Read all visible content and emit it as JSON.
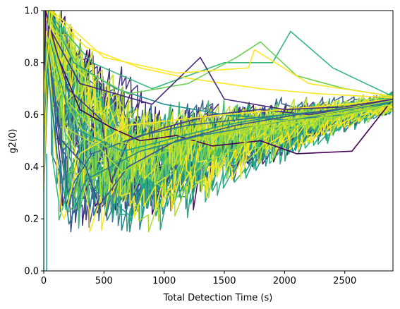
{
  "chart_data": {
    "type": "line",
    "title": "",
    "xlabel": "Total Detection Time (s)",
    "ylabel": "g2(0)",
    "xlim": [
      0,
      2900
    ],
    "ylim": [
      0.0,
      1.0
    ],
    "x_ticks": [
      0,
      500,
      1000,
      1500,
      2000,
      2500
    ],
    "y_ticks": [
      0.0,
      0.2,
      0.4,
      0.6,
      0.8,
      1.0
    ],
    "x_tick_labels": [
      "0",
      "500",
      "1000",
      "1500",
      "2000",
      "2500"
    ],
    "y_tick_labels": [
      "0.0",
      "0.2",
      "0.4",
      "0.6",
      "0.8",
      "1.0"
    ],
    "grid": false,
    "legend": "none",
    "colormap": "viridis",
    "series_count": 60,
    "x_end": 2900,
    "end_value_range": [
      0.62,
      0.68
    ],
    "series": [
      {
        "color": "#440154",
        "values": [
          [
            0,
            0.55
          ],
          [
            15,
            1.0
          ],
          [
            120,
            0.82
          ],
          [
            300,
            0.62
          ],
          [
            560,
            0.55
          ],
          [
            800,
            0.5
          ],
          [
            1100,
            0.52
          ],
          [
            1400,
            0.48
          ],
          [
            1800,
            0.5
          ],
          [
            2100,
            0.45
          ],
          [
            2560,
            0.46
          ],
          [
            2900,
            0.66
          ]
        ]
      },
      {
        "color": "#443a83",
        "values": [
          [
            0,
            0.6
          ],
          [
            30,
            0.96
          ],
          [
            200,
            0.7
          ],
          [
            480,
            0.58
          ],
          [
            560,
            0.34
          ],
          [
            700,
            0.5
          ],
          [
            1000,
            0.55
          ],
          [
            1400,
            0.6
          ],
          [
            1800,
            0.62
          ],
          [
            2200,
            0.6
          ],
          [
            2900,
            0.65
          ]
        ]
      },
      {
        "color": "#31688e",
        "values": [
          [
            0,
            0.5
          ],
          [
            20,
            0.9
          ],
          [
            100,
            0.6
          ],
          [
            180,
            0.4
          ],
          [
            200,
            0.3
          ],
          [
            400,
            0.45
          ],
          [
            800,
            0.52
          ],
          [
            1200,
            0.56
          ],
          [
            1600,
            0.58
          ],
          [
            2000,
            0.6
          ],
          [
            2500,
            0.62
          ],
          [
            2900,
            0.66
          ]
        ]
      },
      {
        "color": "#21918c",
        "values": [
          [
            0,
            0.65
          ],
          [
            40,
            1.0
          ],
          [
            250,
            0.8
          ],
          [
            600,
            0.7
          ],
          [
            1000,
            0.64
          ],
          [
            1500,
            0.6
          ],
          [
            2000,
            0.58
          ],
          [
            2500,
            0.6
          ],
          [
            2900,
            0.65
          ]
        ]
      },
      {
        "color": "#35b779",
        "values": [
          [
            0,
            0.7
          ],
          [
            60,
            0.98
          ],
          [
            400,
            0.8
          ],
          [
            900,
            0.7
          ],
          [
            1500,
            0.8
          ],
          [
            1900,
            0.8
          ],
          [
            2050,
            0.92
          ],
          [
            2400,
            0.78
          ],
          [
            2900,
            0.67
          ]
        ]
      },
      {
        "color": "#90d743",
        "values": [
          [
            0,
            0.62
          ],
          [
            20,
            0.8
          ],
          [
            300,
            0.55
          ],
          [
            900,
            0.35
          ],
          [
            1100,
            0.28
          ],
          [
            1300,
            0.4
          ],
          [
            1700,
            0.5
          ],
          [
            2100,
            0.55
          ],
          [
            2500,
            0.6
          ],
          [
            2900,
            0.64
          ]
        ]
      },
      {
        "color": "#fde725",
        "values": [
          [
            0,
            0.5
          ],
          [
            25,
            0.92
          ],
          [
            90,
            0.5
          ],
          [
            150,
            0.22
          ],
          [
            170,
            0.2
          ],
          [
            300,
            0.45
          ],
          [
            700,
            0.56
          ],
          [
            1100,
            0.58
          ],
          [
            1500,
            0.6
          ],
          [
            2000,
            0.62
          ],
          [
            2500,
            0.64
          ],
          [
            2900,
            0.66
          ]
        ]
      },
      {
        "color": "#fde725",
        "values": [
          [
            0,
            0.72
          ],
          [
            50,
            1.0
          ],
          [
            350,
            0.86
          ],
          [
            800,
            0.78
          ],
          [
            1200,
            0.74
          ],
          [
            1800,
            0.7
          ],
          [
            2300,
            0.68
          ],
          [
            2900,
            0.665
          ]
        ]
      },
      {
        "color": "#b5de2b",
        "values": [
          [
            0,
            0.6
          ],
          [
            35,
            0.95
          ],
          [
            200,
            0.65
          ],
          [
            500,
            0.5
          ],
          [
            900,
            0.48
          ],
          [
            1400,
            0.52
          ],
          [
            1900,
            0.55
          ],
          [
            2400,
            0.6
          ],
          [
            2900,
            0.64
          ]
        ]
      },
      {
        "color": "#1f9e89",
        "values": [
          [
            0,
            0.55
          ],
          [
            45,
            0.9
          ],
          [
            240,
            0.55
          ],
          [
            660,
            0.46
          ],
          [
            1000,
            0.5
          ],
          [
            1500,
            0.56
          ],
          [
            2000,
            0.6
          ],
          [
            2500,
            0.62
          ],
          [
            2900,
            0.655
          ]
        ]
      },
      {
        "color": "#3b528b",
        "values": [
          [
            0,
            0.5
          ],
          [
            25,
            0.88
          ],
          [
            150,
            0.5
          ],
          [
            350,
            0.4
          ],
          [
            460,
            0.25
          ],
          [
            700,
            0.4
          ],
          [
            1100,
            0.5
          ],
          [
            1600,
            0.56
          ],
          [
            2100,
            0.6
          ],
          [
            2600,
            0.63
          ],
          [
            2900,
            0.66
          ]
        ]
      },
      {
        "color": "#6ece58",
        "values": [
          [
            0,
            0.66
          ],
          [
            55,
            0.97
          ],
          [
            300,
            0.78
          ],
          [
            700,
            0.68
          ],
          [
            1200,
            0.72
          ],
          [
            1600,
            0.82
          ],
          [
            1800,
            0.88
          ],
          [
            2100,
            0.75
          ],
          [
            2500,
            0.7
          ],
          [
            2900,
            0.67
          ]
        ]
      },
      {
        "color": "#482878",
        "values": [
          [
            0,
            0.58
          ],
          [
            40,
            0.94
          ],
          [
            300,
            0.72
          ],
          [
            900,
            0.64
          ],
          [
            1300,
            0.82
          ],
          [
            1500,
            0.66
          ],
          [
            2000,
            0.62
          ],
          [
            2500,
            0.63
          ],
          [
            2900,
            0.66
          ]
        ]
      },
      {
        "color": "#26828e",
        "values": [
          [
            0,
            0.45
          ],
          [
            15,
            0.85
          ],
          [
            110,
            0.45
          ],
          [
            190,
            0.25
          ],
          [
            210,
            0.18
          ],
          [
            350,
            0.35
          ],
          [
            800,
            0.46
          ],
          [
            1300,
            0.52
          ],
          [
            1800,
            0.56
          ],
          [
            2300,
            0.6
          ],
          [
            2900,
            0.65
          ]
        ]
      },
      {
        "color": "#fde725",
        "values": [
          [
            0,
            0.68
          ],
          [
            70,
            1.0
          ],
          [
            500,
            0.82
          ],
          [
            1100,
            0.76
          ],
          [
            1700,
            0.78
          ],
          [
            1750,
            0.85
          ],
          [
            2200,
            0.72
          ],
          [
            2900,
            0.67
          ]
        ]
      },
      {
        "color": "#addc30",
        "values": [
          [
            0,
            0.56
          ],
          [
            30,
            0.9
          ],
          [
            180,
            0.55
          ],
          [
            450,
            0.48
          ],
          [
            650,
            0.38
          ],
          [
            900,
            0.44
          ],
          [
            1400,
            0.52
          ],
          [
            1900,
            0.57
          ],
          [
            2400,
            0.61
          ],
          [
            2900,
            0.655
          ]
        ]
      }
    ]
  }
}
